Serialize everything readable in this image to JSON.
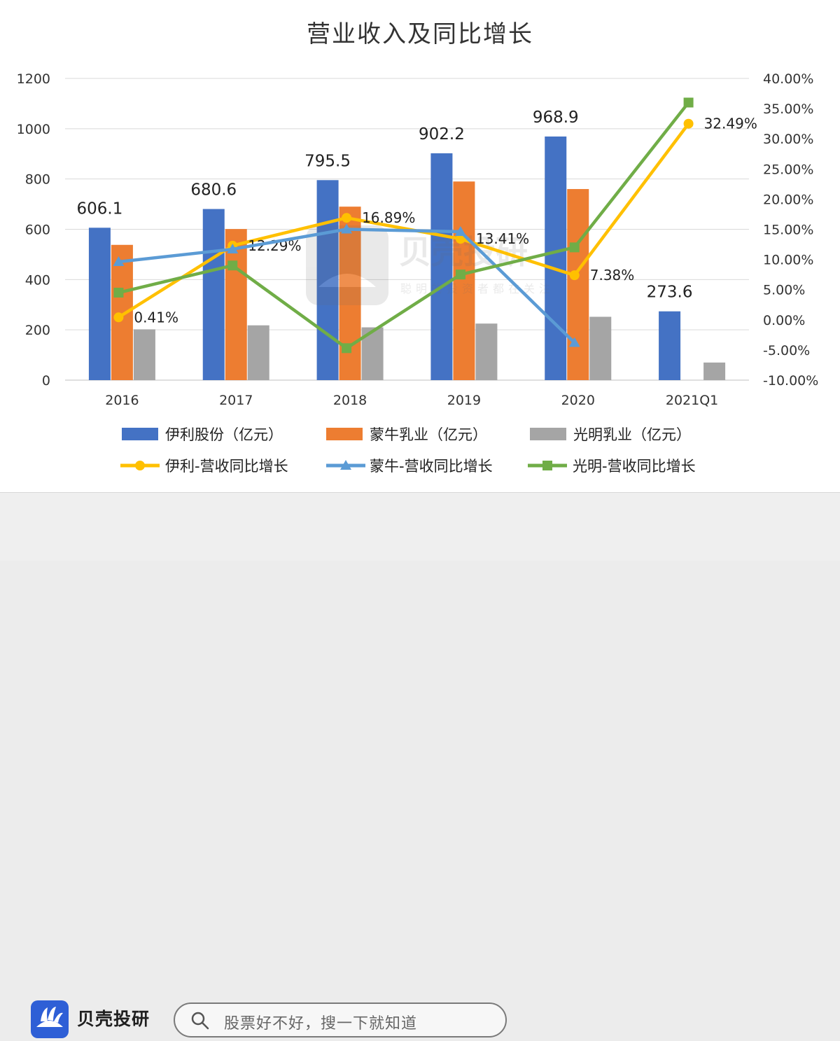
{
  "chart_data": {
    "type": "bar",
    "title": "营业收入及同比增长",
    "categories": [
      "2016",
      "2017",
      "2018",
      "2019",
      "2020",
      "2021Q1"
    ],
    "y_left": {
      "ylim": [
        0,
        1200
      ],
      "ticks": [
        "0",
        "200",
        "400",
        "600",
        "800",
        "1000",
        "1200"
      ]
    },
    "y_right": {
      "ylim": [
        -10,
        40
      ],
      "ticks": [
        "-10.00%",
        "-5.00%",
        "0.00%",
        "5.00%",
        "10.00%",
        "15.00%",
        "20.00%",
        "25.00%",
        "30.00%",
        "35.00%",
        "40.00%"
      ]
    },
    "bar_series": [
      {
        "name": "伊利股份（亿元）",
        "color": "#4472c4",
        "values": [
          606.1,
          680.6,
          795.5,
          902.2,
          968.9,
          273.6
        ],
        "labels": [
          "606.1",
          "680.6",
          "795.5",
          "902.2",
          "968.9",
          "273.6"
        ]
      },
      {
        "name": "蒙牛乳业（亿元）",
        "color": "#ed7d31",
        "values": [
          538,
          601,
          690,
          790,
          760,
          null
        ]
      },
      {
        "name": "光明乳业（亿元）",
        "color": "#a5a5a5",
        "values": [
          202,
          218,
          210,
          225,
          252,
          70
        ]
      }
    ],
    "line_series": [
      {
        "name": "伊利-营收同比增长",
        "color": "#ffc000",
        "marker": "circle",
        "values": [
          0.41,
          12.29,
          16.89,
          13.41,
          7.38,
          32.49
        ],
        "labels": [
          "0.41%",
          "12.29%",
          "16.89%",
          "13.41%",
          "7.38%",
          "32.49%"
        ]
      },
      {
        "name": "蒙牛-营收同比增长",
        "color": "#5b9bd5",
        "marker": "triangle",
        "values": [
          9.6,
          11.7,
          15.0,
          14.6,
          -3.8,
          null
        ]
      },
      {
        "name": "光明-营收同比增长",
        "color": "#70ad47",
        "marker": "square",
        "values": [
          4.5,
          9.0,
          -4.7,
          7.5,
          12.0,
          36.0
        ]
      }
    ],
    "legend_position": "bottom",
    "grid": true
  },
  "watermark": {
    "brand": "贝壳投研",
    "slogan": "聪明的投资者都在关注"
  },
  "footer": {
    "brand_name": "贝壳投研",
    "search_placeholder": "股票好不好，搜一下就知道"
  }
}
